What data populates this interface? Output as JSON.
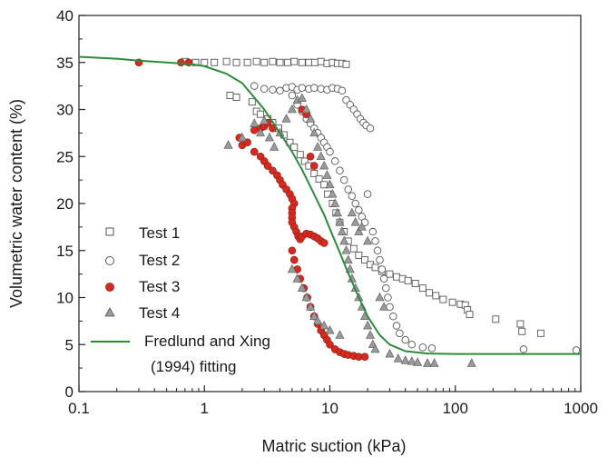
{
  "chart_data": {
    "type": "scatter",
    "title": "",
    "xlabel": "Matric suction (kPa)",
    "ylabel": "Volumetric water content (%)",
    "xscale": "log",
    "xlim": [
      0.1,
      1000
    ],
    "ylim": [
      0,
      40
    ],
    "x_ticks": [
      0.1,
      1,
      10,
      100,
      1000
    ],
    "x_tick_labels": [
      "0.1",
      "1",
      "10",
      "100",
      "1000"
    ],
    "y_ticks": [
      0,
      5,
      10,
      15,
      20,
      25,
      30,
      35,
      40
    ],
    "y_tick_labels": [
      "0",
      "5",
      "10",
      "15",
      "20",
      "25",
      "30",
      "35",
      "40"
    ],
    "grid": false,
    "legend_position": "lower-left",
    "series": [
      {
        "name": "Test 1",
        "marker": "square-open",
        "color": "#555555",
        "points": [
          [
            0.7,
            35.1
          ],
          [
            0.85,
            35.0
          ],
          [
            1.0,
            35.0
          ],
          [
            1.2,
            35.0
          ],
          [
            1.5,
            35.1
          ],
          [
            1.8,
            35.0
          ],
          [
            2.2,
            35.0
          ],
          [
            2.6,
            35.1
          ],
          [
            3.0,
            35.0
          ],
          [
            3.5,
            35.1
          ],
          [
            4.0,
            35.0
          ],
          [
            4.6,
            35.0
          ],
          [
            5.2,
            35.1
          ],
          [
            6.0,
            35.0
          ],
          [
            6.8,
            35.0
          ],
          [
            7.6,
            35.0
          ],
          [
            8.5,
            35.1
          ],
          [
            9.5,
            34.9
          ],
          [
            10.5,
            35.0
          ],
          [
            11.5,
            34.9
          ],
          [
            12.5,
            34.9
          ],
          [
            13.5,
            34.8
          ],
          [
            1.6,
            31.5
          ],
          [
            1.8,
            31.3
          ],
          [
            2.4,
            30.8
          ],
          [
            2.6,
            29.8
          ],
          [
            2.8,
            29.5
          ],
          [
            3.2,
            29.0
          ],
          [
            3.5,
            28.6
          ],
          [
            3.9,
            28.0
          ],
          [
            4.3,
            27.3
          ],
          [
            4.8,
            26.5
          ],
          [
            5.2,
            26.0
          ],
          [
            5.8,
            25.2
          ],
          [
            6.3,
            24.5
          ],
          [
            6.8,
            24.0
          ],
          [
            7.5,
            23.2
          ],
          [
            8.2,
            22.6
          ],
          [
            9.0,
            22.0
          ],
          [
            9.6,
            21.0
          ],
          [
            10.5,
            20.0
          ],
          [
            11.2,
            19.0
          ],
          [
            12.0,
            18.0
          ],
          [
            13.0,
            17.0
          ],
          [
            14.0,
            16.0
          ],
          [
            15.5,
            15.2
          ],
          [
            17.0,
            14.5
          ],
          [
            19.0,
            14.0
          ],
          [
            21.0,
            13.5
          ],
          [
            23.0,
            13.2
          ],
          [
            26.0,
            12.8
          ],
          [
            30.0,
            12.5
          ],
          [
            34.0,
            12.2
          ],
          [
            38.0,
            12.0
          ],
          [
            42.0,
            11.8
          ],
          [
            48.0,
            11.5
          ],
          [
            55.0,
            11.0
          ],
          [
            62.0,
            10.5
          ],
          [
            70.0,
            10.2
          ],
          [
            80.0,
            9.8
          ],
          [
            95.0,
            9.5
          ],
          [
            110.0,
            9.3
          ],
          [
            120.0,
            9.2
          ],
          [
            125.0,
            8.7
          ],
          [
            130.0,
            8.2
          ],
          [
            210.0,
            7.7
          ],
          [
            330.0,
            7.2
          ],
          [
            340.0,
            6.4
          ],
          [
            480.0,
            6.2
          ]
        ]
      },
      {
        "name": "Test 2",
        "marker": "circle-open",
        "color": "#555555",
        "points": [
          [
            2.5,
            32.5
          ],
          [
            3.0,
            32.2
          ],
          [
            3.5,
            32.1
          ],
          [
            4.0,
            32.0
          ],
          [
            4.5,
            32.3
          ],
          [
            5.0,
            32.4
          ],
          [
            5.5,
            32.1
          ],
          [
            6.0,
            32.3
          ],
          [
            6.8,
            32.2
          ],
          [
            7.5,
            32.3
          ],
          [
            8.5,
            32.2
          ],
          [
            9.5,
            32.1
          ],
          [
            10.5,
            32.3
          ],
          [
            11.5,
            32.2
          ],
          [
            12.5,
            32.0
          ],
          [
            13.5,
            31.0
          ],
          [
            14.5,
            30.5
          ],
          [
            15.5,
            30.0
          ],
          [
            16.5,
            29.5
          ],
          [
            17.5,
            29.0
          ],
          [
            18.5,
            28.6
          ],
          [
            19.5,
            28.3
          ],
          [
            21.0,
            28.0
          ],
          [
            5.0,
            31.5
          ],
          [
            5.5,
            30.5
          ],
          [
            6.0,
            29.8
          ],
          [
            6.5,
            29.0
          ],
          [
            7.0,
            28.5
          ],
          [
            7.5,
            28.0
          ],
          [
            8.0,
            27.5
          ],
          [
            8.5,
            27.0
          ],
          [
            9.0,
            26.5
          ],
          [
            9.5,
            26.0
          ],
          [
            10.0,
            25.5
          ],
          [
            11.0,
            24.5
          ],
          [
            12.0,
            23.5
          ],
          [
            13.0,
            22.5
          ],
          [
            14.0,
            21.5
          ],
          [
            15.0,
            20.8
          ],
          [
            16.0,
            20.0
          ],
          [
            17.0,
            19.3
          ],
          [
            18.0,
            18.6
          ],
          [
            19.0,
            18.0
          ],
          [
            20.0,
            21.0
          ],
          [
            22.0,
            17.0
          ],
          [
            23.0,
            16.0
          ],
          [
            24.0,
            15.0
          ],
          [
            25.0,
            14.0
          ],
          [
            26.0,
            13.0
          ],
          [
            27.0,
            12.0
          ],
          [
            28.0,
            11.0
          ],
          [
            29.0,
            10.0
          ],
          [
            30.0,
            9.0
          ],
          [
            32.0,
            8.0
          ],
          [
            34.0,
            7.0
          ],
          [
            36.0,
            6.2
          ],
          [
            40.0,
            5.5
          ],
          [
            45.0,
            5.0
          ],
          [
            55.0,
            4.7
          ],
          [
            65.0,
            4.6
          ],
          [
            350.0,
            4.5
          ],
          [
            920.0,
            4.4
          ]
        ]
      },
      {
        "name": "Test 3",
        "marker": "circle-filled",
        "color": "#d42a20",
        "points": [
          [
            0.3,
            35.0
          ],
          [
            0.65,
            35.0
          ],
          [
            0.75,
            35.0
          ],
          [
            1.9,
            27.0
          ],
          [
            2.0,
            26.2
          ],
          [
            2.2,
            26.5
          ],
          [
            2.5,
            27.8
          ],
          [
            2.8,
            28.0
          ],
          [
            3.0,
            28.2
          ],
          [
            3.2,
            28.6
          ],
          [
            3.5,
            28.0
          ],
          [
            2.5,
            25.5
          ],
          [
            2.8,
            25.0
          ],
          [
            3.0,
            24.5
          ],
          [
            3.2,
            24.0
          ],
          [
            3.5,
            23.5
          ],
          [
            3.8,
            23.0
          ],
          [
            4.0,
            22.5
          ],
          [
            4.2,
            22.0
          ],
          [
            4.5,
            21.5
          ],
          [
            4.8,
            21.0
          ],
          [
            5.0,
            20.5
          ],
          [
            5.2,
            20.0
          ],
          [
            5.0,
            19.5
          ],
          [
            5.0,
            19.0
          ],
          [
            5.0,
            18.5
          ],
          [
            5.0,
            18.0
          ],
          [
            5.2,
            17.5
          ],
          [
            5.4,
            17.0
          ],
          [
            5.6,
            16.5
          ],
          [
            5.8,
            16.2
          ],
          [
            6.0,
            16.5
          ],
          [
            6.5,
            16.8
          ],
          [
            7.0,
            16.7
          ],
          [
            7.5,
            16.5
          ],
          [
            8.0,
            16.3
          ],
          [
            8.5,
            16.0
          ],
          [
            9.0,
            15.8
          ],
          [
            6.0,
            30.0
          ],
          [
            6.5,
            29.5
          ],
          [
            7.0,
            25.0
          ],
          [
            7.5,
            24.0
          ],
          [
            5.0,
            15.0
          ],
          [
            5.2,
            14.0
          ],
          [
            5.5,
            13.0
          ],
          [
            5.8,
            12.0
          ],
          [
            6.2,
            11.0
          ],
          [
            6.6,
            10.0
          ],
          [
            7.0,
            9.0
          ],
          [
            7.5,
            8.0
          ],
          [
            8.0,
            7.2
          ],
          [
            8.5,
            6.5
          ],
          [
            9.0,
            6.0
          ],
          [
            9.5,
            5.5
          ],
          [
            10.0,
            5.0
          ],
          [
            11.0,
            4.5
          ],
          [
            12.0,
            4.2
          ],
          [
            13.0,
            4.0
          ],
          [
            14.0,
            3.9
          ],
          [
            15.5,
            3.8
          ],
          [
            17.0,
            3.7
          ],
          [
            19.0,
            3.7
          ]
        ]
      },
      {
        "name": "Test 4",
        "marker": "triangle-filled",
        "color": "#9a9a9a",
        "points": [
          [
            1.55,
            26.2
          ],
          [
            2.0,
            27.0
          ],
          [
            2.5,
            28.5
          ],
          [
            2.8,
            27.5
          ],
          [
            3.0,
            28.8
          ],
          [
            3.3,
            27.0
          ],
          [
            3.6,
            26.0
          ],
          [
            4.0,
            27.5
          ],
          [
            4.5,
            29.0
          ],
          [
            5.0,
            30.0
          ],
          [
            5.5,
            31.0
          ],
          [
            6.0,
            31.2
          ],
          [
            6.5,
            30.0
          ],
          [
            7.0,
            29.0
          ],
          [
            7.5,
            27.5
          ],
          [
            8.0,
            26.0
          ],
          [
            8.5,
            25.0
          ],
          [
            9.0,
            24.0
          ],
          [
            9.5,
            23.0
          ],
          [
            10.0,
            22.0
          ],
          [
            10.5,
            21.0
          ],
          [
            11.0,
            20.0
          ],
          [
            11.5,
            19.0
          ],
          [
            12.0,
            18.0
          ],
          [
            12.5,
            17.0
          ],
          [
            13.0,
            16.0
          ],
          [
            13.5,
            15.0
          ],
          [
            14.0,
            14.0
          ],
          [
            14.5,
            13.0
          ],
          [
            15.0,
            12.0
          ],
          [
            16.0,
            11.0
          ],
          [
            17.0,
            10.0
          ],
          [
            18.0,
            9.0
          ],
          [
            19.0,
            8.0
          ],
          [
            20.0,
            7.0
          ],
          [
            21.0,
            6.0
          ],
          [
            22.0,
            5.0
          ],
          [
            23.0,
            4.5
          ],
          [
            5.0,
            13.0
          ],
          [
            5.5,
            12.0
          ],
          [
            6.0,
            11.0
          ],
          [
            6.5,
            10.0
          ],
          [
            7.0,
            9.0
          ],
          [
            7.5,
            8.0
          ],
          [
            8.0,
            7.5
          ],
          [
            9.0,
            7.0
          ],
          [
            10.0,
            6.5
          ],
          [
            12.0,
            6.0
          ],
          [
            15.0,
            19.0
          ],
          [
            16.0,
            18.0
          ],
          [
            17.0,
            17.0
          ],
          [
            18.0,
            17.5
          ],
          [
            20.0,
            16.0
          ],
          [
            25.0,
            10.0
          ],
          [
            27.0,
            9.0
          ],
          [
            30.0,
            4.0
          ],
          [
            35.0,
            3.5
          ],
          [
            40.0,
            3.3
          ],
          [
            45.0,
            3.2
          ],
          [
            50.0,
            3.1
          ],
          [
            60.0,
            3.0
          ],
          [
            68.0,
            3.0
          ],
          [
            135.0,
            3.0
          ]
        ]
      },
      {
        "name": "Fredlund and Xing (1994) fitting",
        "marker": "line",
        "color": "#2e8b3a",
        "points": [
          [
            0.1,
            35.6
          ],
          [
            0.2,
            35.4
          ],
          [
            0.3,
            35.2
          ],
          [
            0.5,
            35.0
          ],
          [
            0.8,
            34.8
          ],
          [
            1.0,
            34.6
          ],
          [
            1.5,
            33.8
          ],
          [
            2.0,
            32.8
          ],
          [
            3.0,
            30.0
          ],
          [
            4.0,
            27.5
          ],
          [
            5.0,
            25.5
          ],
          [
            6.0,
            23.6
          ],
          [
            7.0,
            21.8
          ],
          [
            8.0,
            20.2
          ],
          [
            9.0,
            18.8
          ],
          [
            10.0,
            17.3
          ],
          [
            12.0,
            14.8
          ],
          [
            14.0,
            12.6
          ],
          [
            17.0,
            10.0
          ],
          [
            20.0,
            8.0
          ],
          [
            25.0,
            6.0
          ],
          [
            30.0,
            5.0
          ],
          [
            40.0,
            4.3
          ],
          [
            60.0,
            4.05
          ],
          [
            100.0,
            4.0
          ],
          [
            300.0,
            4.0
          ],
          [
            1000.0,
            4.0
          ]
        ]
      }
    ],
    "legend": [
      "Test 1",
      "Test 2",
      "Test 3",
      "Test 4",
      "Fredlund and Xing",
      "(1994) fitting"
    ]
  }
}
